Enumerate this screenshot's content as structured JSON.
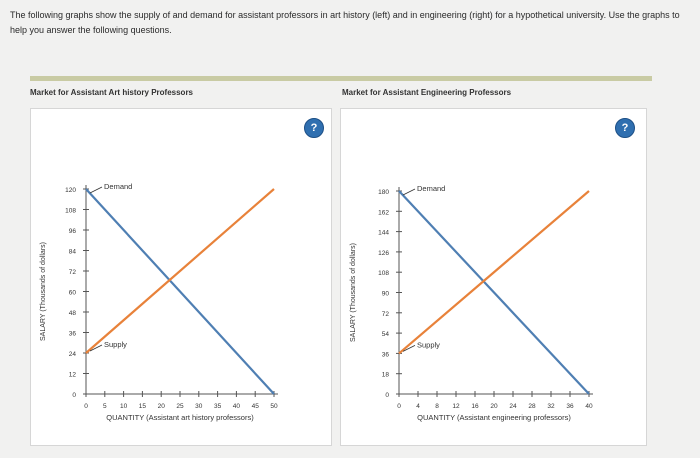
{
  "intro_text": "The following graphs show the supply of and demand for assistant professors in art history (left) and in engineering (right) for a hypothetical university. Use the graphs to help you answer the following questions.",
  "help_label": "?",
  "colors": {
    "demand": "#4f7fb3",
    "supply": "#e8823a",
    "help": "#2f6fb0"
  },
  "chart_data": [
    {
      "type": "line",
      "title": "Market for Assistant Art history Professors",
      "xlabel": "QUANTITY (Assistant art history professors)",
      "ylabel": "SALARY (Thousands of dollars)",
      "xlim": [
        0,
        50
      ],
      "ylim": [
        0,
        120
      ],
      "xticks": [
        0,
        5,
        10,
        15,
        20,
        25,
        30,
        35,
        40,
        45,
        50
      ],
      "yticks": [
        0,
        12,
        24,
        36,
        48,
        60,
        72,
        84,
        96,
        108,
        120
      ],
      "series": [
        {
          "name": "Demand",
          "x": [
            0,
            50
          ],
          "y": [
            120,
            0
          ]
        },
        {
          "name": "Supply",
          "x": [
            0,
            50
          ],
          "y": [
            24,
            120
          ]
        }
      ]
    },
    {
      "type": "line",
      "title": "Market for Assistant Engineering Professors",
      "xlabel": "QUANTITY (Assistant engineering professors)",
      "ylabel": "SALARY (Thousands of dollars)",
      "xlim": [
        0,
        40
      ],
      "ylim": [
        0,
        180
      ],
      "xticks": [
        0,
        4,
        8,
        12,
        16,
        20,
        24,
        28,
        32,
        36,
        40
      ],
      "yticks": [
        0,
        18,
        36,
        54,
        72,
        90,
        108,
        126,
        144,
        162,
        180
      ],
      "series": [
        {
          "name": "Demand",
          "x": [
            0,
            40
          ],
          "y": [
            180,
            0
          ]
        },
        {
          "name": "Supply",
          "x": [
            0,
            40
          ],
          "y": [
            36,
            180
          ]
        }
      ]
    }
  ]
}
